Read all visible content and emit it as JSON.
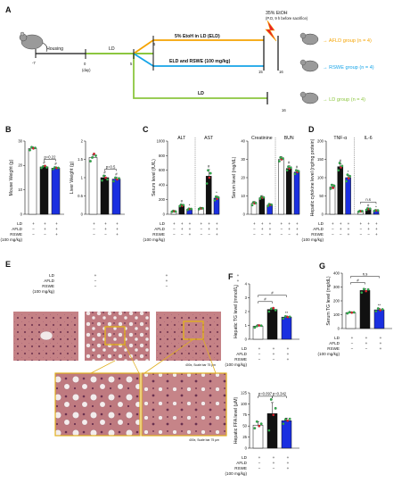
{
  "colors": {
    "ld": "#ffffff",
    "afld": "#111111",
    "rswe": "#1a2fe0",
    "green_dot": "#2db34a",
    "red_dot": "#e8202a",
    "orange": "#f5a300",
    "blue_line": "#15a4e8",
    "green_line": "#8cc63f",
    "yellow_box": "#e0b020"
  },
  "panels": {
    "A": {
      "letter": "A",
      "housing": "Housing",
      "ld_top": "LD",
      "etoh_head1": "35% EtOH",
      "etoh_head2": "(P.O, 9 h before sacrifice)",
      "time_minus7": "-7",
      "time_0": "0",
      "time_day": "(day)",
      "time_5": "5",
      "time_6": "6",
      "time_15": "15",
      "time_16a": "16",
      "time_16b": "16",
      "bar_eld": "5% EtoH in LD (ELD)",
      "bar_rswe": "ELD and RSWE (100 mg/kg)",
      "bar_ld": "LD",
      "grp_afld": "→ AFLD group (n = 4)",
      "grp_rswe": "→ RSWE group (n = 4)",
      "grp_ld": "→ LD group (n = 4)"
    },
    "B": {
      "letter": "B"
    },
    "C": {
      "letter": "C"
    },
    "D": {
      "letter": "D"
    },
    "E": {
      "letter": "E",
      "scale1": "400x, Scale bar 75 μm",
      "scale2": "400x, Scale bar 75 μm"
    },
    "F": {
      "letter": "F"
    },
    "G": {
      "letter": "G"
    }
  },
  "tables": {
    "std": {
      "row_ld": "LD",
      "row_afld": "AFLD",
      "row_rswe": "RSWE",
      "dose": "(100 mg/kg)",
      "ld": [
        "+",
        "+",
        "+"
      ],
      "afld": [
        "−",
        "+",
        "+"
      ],
      "rswe": [
        "−",
        "−",
        "+"
      ]
    },
    "c_ld": [
      "+",
      "+",
      "+",
      "+",
      "+",
      "+"
    ],
    "c_afld": [
      "−",
      "+",
      "+",
      "−",
      "+",
      "+"
    ],
    "c_rswe": [
      "−",
      "−",
      "+",
      "−",
      "−",
      "+"
    ]
  },
  "chart_data": [
    {
      "id": "B1",
      "type": "bar",
      "ylabel": "Mouse Weight (g)",
      "ylim": [
        0,
        30
      ],
      "yticks": [
        0,
        10,
        20,
        30
      ],
      "categories": [
        "LD",
        "AFLD",
        "RSWE"
      ],
      "values": [
        27.0,
        19.4,
        18.9
      ],
      "err": [
        0.6,
        0.5,
        0.5
      ],
      "points": [
        [
          26.3,
          27.5,
          27.0,
          27.2
        ],
        [
          19.0,
          19.6,
          19.8,
          19.2
        ],
        [
          18.5,
          19.2,
          18.9,
          19.0
        ]
      ],
      "annotations": [
        {
          "text": "p=0.22",
          "between": [
            1,
            2
          ]
        },
        {
          "text": "#",
          "on": 1
        },
        {
          "text": "#",
          "on": 2
        }
      ]
    },
    {
      "id": "B2",
      "type": "bar",
      "ylabel": "Liver Weight (g)",
      "ylim": [
        0,
        2.0
      ],
      "yticks": [
        0,
        0.5,
        1.0,
        1.5,
        2.0
      ],
      "categories": [
        "LD",
        "AFLD",
        "RSWE"
      ],
      "values": [
        1.55,
        1.0,
        0.96
      ],
      "err": [
        0.07,
        0.06,
        0.05
      ],
      "points": [
        [
          1.45,
          1.55,
          1.65,
          1.6
        ],
        [
          0.92,
          1.05,
          1.0,
          0.95
        ],
        [
          0.9,
          1.0,
          0.95,
          0.98
        ]
      ],
      "annotations": [
        {
          "text": "p=0.5",
          "between": [
            1,
            2
          ]
        },
        {
          "text": "#",
          "on": 1
        },
        {
          "text": "#",
          "on": 2
        }
      ]
    },
    {
      "id": "C1",
      "type": "bar",
      "ylabel": "Serum level (IU/L)",
      "ylim": [
        0,
        1000
      ],
      "yticks": [
        0,
        200,
        400,
        600,
        800,
        1000
      ],
      "categories": [
        "ALT-LD",
        "ALT-AFLD",
        "ALT-RSWE",
        "AST-LD",
        "AST-AFLD",
        "AST-RSWE"
      ],
      "groups": [
        "ALT",
        "AST"
      ],
      "values": [
        40,
        120,
        70,
        80,
        520,
        220
      ],
      "err": [
        8,
        15,
        10,
        12,
        90,
        30
      ],
      "points": [
        [
          35,
          45,
          40,
          38
        ],
        [
          110,
          130,
          115,
          125
        ],
        [
          60,
          75,
          70,
          72
        ],
        [
          70,
          85,
          80,
          82
        ],
        [
          420,
          600,
          500,
          560
        ],
        [
          190,
          240,
          210,
          230
        ]
      ],
      "annotations": [
        {
          "text": "#",
          "on": 1
        },
        {
          "text": "#",
          "on": 4
        },
        {
          "text": "*",
          "on": 2
        },
        {
          "text": "*",
          "on": 5
        }
      ]
    },
    {
      "id": "C2",
      "type": "bar",
      "ylabel": "Serum level (mg/dL)",
      "ylim": [
        0,
        40
      ],
      "yticks": [
        0,
        10,
        20,
        30,
        40
      ],
      "categories": [
        "Creatinine-LD",
        "Creatinine-AFLD",
        "Creatinine-RSWE",
        "BUN-LD",
        "BUN-AFLD",
        "BUN-RSWE"
      ],
      "groups": [
        "Creatinine",
        "BUN"
      ],
      "values": [
        6,
        9,
        5,
        30,
        25,
        23
      ],
      "err": [
        1,
        1.2,
        0.8,
        1.5,
        1.5,
        1.2
      ],
      "points": [
        [
          5,
          6.5,
          6,
          6.2
        ],
        [
          8.5,
          9.5,
          9,
          9.2
        ],
        [
          4.5,
          5.5,
          5,
          5.2
        ],
        [
          29,
          31,
          30,
          30.5
        ],
        [
          24,
          26,
          25,
          25.5
        ],
        [
          22,
          24,
          23,
          23.5
        ]
      ],
      "annotations": [
        {
          "text": "#",
          "on": 4
        },
        {
          "text": "#",
          "on": 5
        }
      ]
    },
    {
      "id": "D",
      "type": "bar",
      "ylabel": "Hepatic cytokine level (ng/mg protein)",
      "ylim": [
        0,
        200
      ],
      "yticks": [
        0,
        50,
        100,
        150,
        200
      ],
      "categories": [
        "TNF-α-LD",
        "TNF-α-AFLD",
        "TNF-α-RSWE",
        "IL-6-LD",
        "IL-6-AFLD",
        "IL-6-RSWE"
      ],
      "groups": [
        "TNF-α",
        "IL-6"
      ],
      "values": [
        75,
        130,
        100,
        8,
        14,
        10
      ],
      "err": [
        6,
        8,
        7,
        1.5,
        2,
        1.5
      ],
      "points": [
        [
          70,
          80,
          72,
          78
        ],
        [
          120,
          140,
          128,
          132
        ],
        [
          90,
          108,
          98,
          104
        ],
        [
          7,
          9,
          8,
          8.5
        ],
        [
          12,
          16,
          14,
          15
        ],
        [
          9,
          11,
          10,
          10.5
        ]
      ],
      "annotations": [
        {
          "text": "#",
          "on": 1
        },
        {
          "text": "*",
          "on": 2
        },
        {
          "text": "#",
          "on": 4
        },
        {
          "text": "*",
          "on": 5
        },
        {
          "text": "n.s",
          "between": [
            3,
            5
          ]
        }
      ]
    },
    {
      "id": "F1",
      "type": "bar",
      "ylabel": "Hepatic TG level (mmol/L)",
      "ylim": [
        0,
        4
      ],
      "yticks": [
        0,
        1,
        2,
        3,
        4
      ],
      "categories": [
        "LD",
        "AFLD",
        "RSWE"
      ],
      "values": [
        0.95,
        2.15,
        1.6
      ],
      "err": [
        0.1,
        0.12,
        0.08
      ],
      "points": [
        [
          0.85,
          0.95,
          1.0,
          0.98
        ],
        [
          2.0,
          2.2,
          2.25,
          2.1
        ],
        [
          1.5,
          1.65,
          1.6,
          1.62
        ]
      ],
      "annotations": [
        {
          "text": "#",
          "between": [
            0,
            1
          ]
        },
        {
          "text": "#",
          "between": [
            0,
            2
          ]
        },
        {
          "text": "**",
          "on": 2
        }
      ]
    },
    {
      "id": "F2",
      "type": "bar",
      "ylabel": "Hepatic FFA level (μM)",
      "ylim": [
        0,
        125
      ],
      "yticks": [
        0,
        25,
        50,
        75,
        100,
        125
      ],
      "categories": [
        "LD",
        "AFLD",
        "RSWE"
      ],
      "values": [
        52,
        78,
        62
      ],
      "err": [
        8,
        25,
        6
      ],
      "points": [
        [
          45,
          60,
          50,
          55
        ],
        [
          40,
          110,
          75,
          90
        ],
        [
          55,
          65,
          62,
          66
        ]
      ],
      "annotations": [
        {
          "text": "p=0.097",
          "between": [
            0,
            1
          ]
        },
        {
          "text": "p=0.342",
          "between": [
            1,
            2
          ]
        }
      ]
    },
    {
      "id": "G",
      "type": "bar",
      "ylabel": "Serum TG level (mg/dL)",
      "ylim": [
        0,
        400
      ],
      "yticks": [
        0,
        100,
        200,
        300,
        400
      ],
      "categories": [
        "LD",
        "AFLD",
        "RSWE"
      ],
      "values": [
        115,
        275,
        135
      ],
      "err": [
        5,
        12,
        10
      ],
      "points": [
        [
          110,
          118,
          115,
          117
        ],
        [
          260,
          285,
          270,
          282
        ],
        [
          125,
          145,
          132,
          138
        ]
      ],
      "annotations": [
        {
          "text": "#",
          "between": [
            0,
            1
          ]
        },
        {
          "text": "n.s",
          "between": [
            0,
            2
          ]
        },
        {
          "text": "**",
          "on": 2
        }
      ]
    }
  ]
}
